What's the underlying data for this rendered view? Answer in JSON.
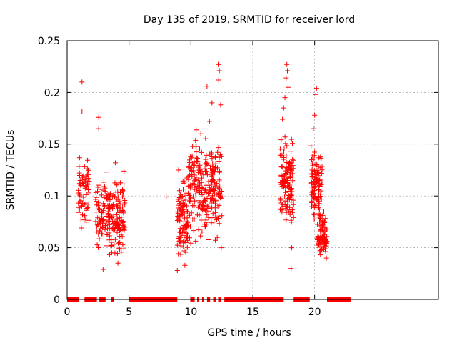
{
  "chart_data": {
    "type": "scatter",
    "title": "Day 135 of 2019, SRMTID for receiver lord",
    "xlabel": "GPS time / hours",
    "ylabel": "SRMTID / TECUs",
    "xlim": [
      0,
      30
    ],
    "ylim": [
      0,
      0.25
    ],
    "xticks": [
      0,
      5,
      10,
      15,
      20
    ],
    "yticks": [
      0,
      0.05,
      0.1,
      0.15,
      0.2,
      0.25
    ],
    "ytick_labels": [
      "0",
      "0.05",
      "0.1",
      "0.15",
      "0.2",
      "0.25"
    ],
    "grid": true,
    "marker": "+",
    "color": "#ff0000",
    "zero_value_intervals": [
      [
        0.0,
        0.95
      ],
      [
        1.4,
        2.4
      ],
      [
        2.6,
        3.1
      ],
      [
        3.55,
        3.75
      ],
      [
        5.0,
        8.9
      ],
      [
        9.95,
        10.3
      ],
      [
        10.5,
        10.65
      ],
      [
        10.9,
        11.05
      ],
      [
        11.3,
        11.55
      ],
      [
        11.8,
        12.0
      ],
      [
        12.2,
        12.45
      ],
      [
        12.7,
        17.5
      ],
      [
        18.3,
        19.6
      ],
      [
        21.0,
        22.9
      ]
    ],
    "clusters": [
      {
        "x0": 0.9,
        "x1": 1.8,
        "ymin": 0.06,
        "ymax": 0.15,
        "n": 70
      },
      {
        "x0": 2.3,
        "x1": 4.7,
        "ymin": 0.03,
        "ymax": 0.13,
        "n": 220
      },
      {
        "x0": 8.9,
        "x1": 9.8,
        "ymin": 0.03,
        "ymax": 0.125,
        "n": 110
      },
      {
        "x0": 9.8,
        "x1": 12.5,
        "ymin": 0.045,
        "ymax": 0.17,
        "n": 260
      },
      {
        "x0": 17.2,
        "x1": 18.3,
        "ymin": 0.06,
        "ymax": 0.17,
        "n": 140
      },
      {
        "x0": 19.7,
        "x1": 20.6,
        "ymin": 0.06,
        "ymax": 0.16,
        "n": 110
      },
      {
        "x0": 20.2,
        "x1": 21.0,
        "ymin": 0.035,
        "ymax": 0.09,
        "n": 90
      }
    ],
    "points": [
      {
        "x": 1.2,
        "y": 0.21
      },
      {
        "x": 1.2,
        "y": 0.182
      },
      {
        "x": 2.55,
        "y": 0.176
      },
      {
        "x": 2.55,
        "y": 0.165
      },
      {
        "x": 12.2,
        "y": 0.227
      },
      {
        "x": 12.3,
        "y": 0.221
      },
      {
        "x": 12.25,
        "y": 0.212
      },
      {
        "x": 11.3,
        "y": 0.206
      },
      {
        "x": 11.7,
        "y": 0.19
      },
      {
        "x": 12.4,
        "y": 0.188
      },
      {
        "x": 11.5,
        "y": 0.172
      },
      {
        "x": 17.75,
        "y": 0.227
      },
      {
        "x": 17.8,
        "y": 0.221
      },
      {
        "x": 17.7,
        "y": 0.214
      },
      {
        "x": 17.85,
        "y": 0.205
      },
      {
        "x": 17.6,
        "y": 0.195
      },
      {
        "x": 17.5,
        "y": 0.185
      },
      {
        "x": 17.4,
        "y": 0.174
      },
      {
        "x": 20.15,
        "y": 0.204
      },
      {
        "x": 20.1,
        "y": 0.198
      },
      {
        "x": 19.7,
        "y": 0.182
      },
      {
        "x": 20.0,
        "y": 0.178
      },
      {
        "x": 19.9,
        "y": 0.165
      },
      {
        "x": 8.0,
        "y": 0.099
      },
      {
        "x": 9.2,
        "y": 0.126
      },
      {
        "x": 9.0,
        "y": 0.125
      },
      {
        "x": 3.6,
        "y": 0.045
      },
      {
        "x": 2.9,
        "y": 0.029
      },
      {
        "x": 4.1,
        "y": 0.035
      },
      {
        "x": 8.9,
        "y": 0.028
      },
      {
        "x": 18.1,
        "y": 0.03
      },
      {
        "x": 18.15,
        "y": 0.05
      },
      {
        "x": 20.95,
        "y": 0.04
      },
      {
        "x": 12.45,
        "y": 0.05
      },
      {
        "x": 12.5,
        "y": 0.081
      },
      {
        "x": 4.6,
        "y": 0.124
      },
      {
        "x": 3.9,
        "y": 0.132
      },
      {
        "x": 10.4,
        "y": 0.148
      },
      {
        "x": 10.8,
        "y": 0.16
      }
    ]
  }
}
